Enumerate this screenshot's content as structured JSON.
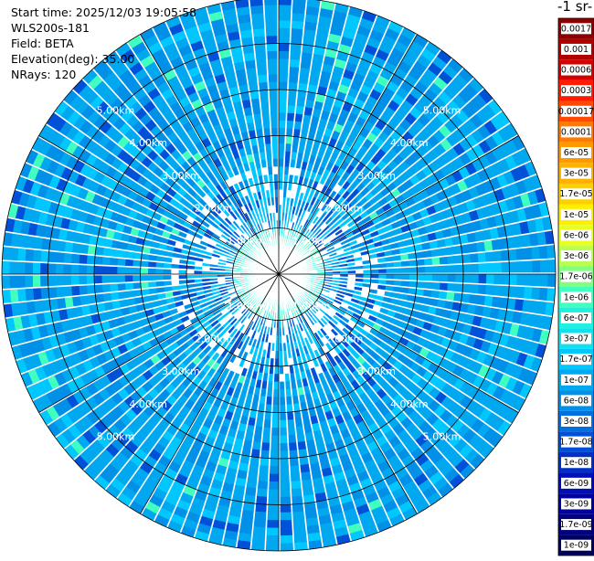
{
  "header": {
    "start_time": "Start time: 2025/12/03 19:05:58",
    "instrument": "WLS200s-181",
    "field": "Field: BETA",
    "elevation": "Elevation(deg): 35.00",
    "nrays": "NRays: 120"
  },
  "colorbar": {
    "title_fragment": "-1 sr-",
    "ticks": [
      "0.0017",
      "0.001",
      "0.0006",
      "0.0003",
      "0.00017",
      "0.0001",
      "6e-05",
      "3e-05",
      "1.7e-05",
      "1e-05",
      "6e-06",
      "3e-06",
      "1.7e-06",
      "1e-06",
      "6e-07",
      "3e-07",
      "1.7e-07",
      "1e-07",
      "6e-08",
      "3e-08",
      "1.7e-08",
      "1e-08",
      "6e-09",
      "3e-09",
      "1.7e-09",
      "1e-09"
    ],
    "colors": [
      "#8b0000",
      "#b00000",
      "#d40000",
      "#ff1a00",
      "#ff4a00",
      "#ff7a00",
      "#ff9900",
      "#ffb000",
      "#ffd000",
      "#ffee00",
      "#e8ff20",
      "#b8ff50",
      "#80ff80",
      "#40ffbf",
      "#20f0e0",
      "#10e0f0",
      "#00c8ff",
      "#00a8f0",
      "#0090e8",
      "#0070e0",
      "#0050d8",
      "#0030c8",
      "#0010b8",
      "#0000a0",
      "#000080",
      "#000060"
    ]
  },
  "chart_data": {
    "type": "heatmap",
    "projection": "polar PPI",
    "variable": "BETA",
    "nrays": 120,
    "range_rings_km": [
      1.0,
      2.0,
      3.0,
      4.0,
      5.0
    ],
    "range_labels": [
      "1.00km",
      "2.00km",
      "3.00km",
      "4.00km",
      "5.00km"
    ],
    "max_range_km": 6.0,
    "colorbar_range": [
      1e-09,
      0.0017
    ],
    "dominant_value_region": [
      {
        "range_km": [
          0,
          1.0
        ],
        "approx_value": "1.7e-06"
      },
      {
        "range_km": [
          1.0,
          2.2
        ],
        "approx_value": "1e-07"
      },
      {
        "range_km": [
          2.2,
          6.0
        ],
        "approx_value": "6e-08"
      }
    ]
  }
}
